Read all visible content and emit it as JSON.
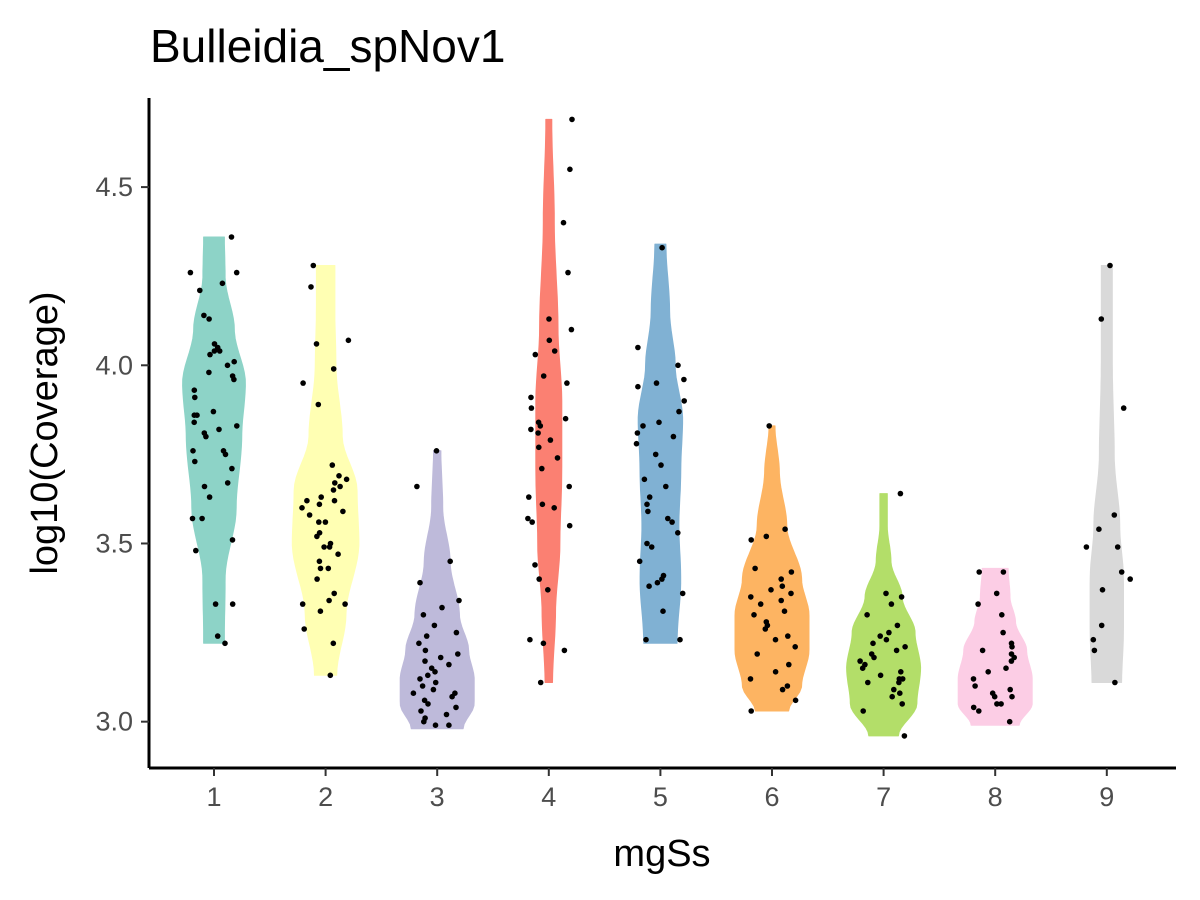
{
  "chart_data": {
    "type": "violin",
    "title": "Bulleidia_spNov1",
    "xlabel": "mgSs",
    "ylabel": "log10(Coverage)",
    "categories": [
      "1",
      "2",
      "3",
      "4",
      "5",
      "6",
      "7",
      "8",
      "9"
    ],
    "yticks": [
      "3.0",
      "3.5",
      "4.0",
      "4.5"
    ],
    "ylim": [
      2.87,
      4.75
    ],
    "grid": false,
    "legend": "none",
    "groups": [
      {
        "category": "1",
        "color": "#8DD3C7",
        "min": 3.22,
        "max": 4.36,
        "density": [
          [
            3.22,
            0.28
          ],
          [
            3.4,
            0.3
          ],
          [
            3.6,
            0.6
          ],
          [
            3.8,
            0.75
          ],
          [
            3.95,
            0.85
          ],
          [
            4.1,
            0.55
          ],
          [
            4.25,
            0.3
          ],
          [
            4.36,
            0.28
          ]
        ],
        "points": [
          3.22,
          3.24,
          3.33,
          3.33,
          3.48,
          3.51,
          3.57,
          3.57,
          3.63,
          3.66,
          3.67,
          3.71,
          3.73,
          3.75,
          3.76,
          3.76,
          3.8,
          3.81,
          3.82,
          3.83,
          3.84,
          3.86,
          3.86,
          3.87,
          3.91,
          3.93,
          3.96,
          3.97,
          3.98,
          4.0,
          4.01,
          4.03,
          4.04,
          4.04,
          4.05,
          4.06,
          4.13,
          4.14,
          4.21,
          4.23,
          4.26,
          4.26,
          4.36
        ]
      },
      {
        "category": "2",
        "color": "#FFFFB3",
        "min": 3.13,
        "max": 4.28,
        "density": [
          [
            3.13,
            0.3
          ],
          [
            3.3,
            0.55
          ],
          [
            3.5,
            0.9
          ],
          [
            3.65,
            0.85
          ],
          [
            3.8,
            0.45
          ],
          [
            4.0,
            0.28
          ],
          [
            4.15,
            0.25
          ],
          [
            4.28,
            0.25
          ]
        ],
        "points": [
          3.13,
          3.22,
          3.26,
          3.31,
          3.33,
          3.33,
          3.34,
          3.36,
          3.4,
          3.43,
          3.43,
          3.45,
          3.47,
          3.49,
          3.49,
          3.5,
          3.52,
          3.53,
          3.56,
          3.56,
          3.58,
          3.59,
          3.6,
          3.61,
          3.62,
          3.62,
          3.63,
          3.65,
          3.66,
          3.67,
          3.68,
          3.69,
          3.72,
          3.89,
          3.95,
          3.99,
          4.06,
          4.07,
          4.22,
          4.28
        ]
      },
      {
        "category": "3",
        "color": "#BEBADA",
        "min": 2.98,
        "max": 3.76,
        "density": [
          [
            2.98,
            0.7
          ],
          [
            3.05,
            1.0
          ],
          [
            3.12,
            1.0
          ],
          [
            3.2,
            0.85
          ],
          [
            3.3,
            0.6
          ],
          [
            3.45,
            0.35
          ],
          [
            3.6,
            0.15
          ],
          [
            3.76,
            0.1
          ]
        ],
        "points": [
          2.99,
          2.99,
          3.0,
          3.01,
          3.02,
          3.03,
          3.04,
          3.05,
          3.06,
          3.07,
          3.08,
          3.08,
          3.09,
          3.1,
          3.11,
          3.12,
          3.13,
          3.14,
          3.15,
          3.16,
          3.17,
          3.18,
          3.19,
          3.2,
          3.22,
          3.24,
          3.25,
          3.27,
          3.3,
          3.32,
          3.34,
          3.39,
          3.45,
          3.66,
          3.76
        ]
      },
      {
        "category": "4",
        "color": "#FB8072",
        "min": 3.11,
        "max": 4.69,
        "density": [
          [
            3.11,
            0.1
          ],
          [
            3.3,
            0.18
          ],
          [
            3.5,
            0.3
          ],
          [
            3.7,
            0.35
          ],
          [
            3.9,
            0.35
          ],
          [
            4.1,
            0.25
          ],
          [
            4.4,
            0.15
          ],
          [
            4.69,
            0.08
          ]
        ],
        "points": [
          3.11,
          3.2,
          3.22,
          3.23,
          3.37,
          3.4,
          3.44,
          3.55,
          3.56,
          3.57,
          3.6,
          3.61,
          3.63,
          3.66,
          3.71,
          3.74,
          3.77,
          3.79,
          3.81,
          3.82,
          3.83,
          3.84,
          3.85,
          3.88,
          3.91,
          3.95,
          3.97,
          4.03,
          4.04,
          4.07,
          4.1,
          4.13,
          4.26,
          4.4,
          4.55,
          4.69
        ]
      },
      {
        "category": "5",
        "color": "#80B1D3",
        "min": 3.22,
        "max": 4.34,
        "density": [
          [
            3.22,
            0.45
          ],
          [
            3.4,
            0.55
          ],
          [
            3.55,
            0.5
          ],
          [
            3.7,
            0.55
          ],
          [
            3.85,
            0.6
          ],
          [
            4.0,
            0.4
          ],
          [
            4.15,
            0.25
          ],
          [
            4.34,
            0.15
          ]
        ],
        "points": [
          3.23,
          3.23,
          3.31,
          3.36,
          3.38,
          3.39,
          3.4,
          3.41,
          3.45,
          3.49,
          3.5,
          3.53,
          3.56,
          3.57,
          3.59,
          3.61,
          3.63,
          3.66,
          3.68,
          3.72,
          3.75,
          3.78,
          3.8,
          3.81,
          3.83,
          3.84,
          3.87,
          3.9,
          3.94,
          3.95,
          3.96,
          4.0,
          4.05,
          4.33
        ]
      },
      {
        "category": "6",
        "color": "#FDB462",
        "min": 3.03,
        "max": 3.83,
        "density": [
          [
            3.03,
            0.45
          ],
          [
            3.1,
            0.8
          ],
          [
            3.2,
            1.0
          ],
          [
            3.3,
            1.0
          ],
          [
            3.4,
            0.8
          ],
          [
            3.55,
            0.4
          ],
          [
            3.7,
            0.2
          ],
          [
            3.83,
            0.08
          ]
        ],
        "points": [
          3.03,
          3.06,
          3.09,
          3.1,
          3.12,
          3.14,
          3.16,
          3.19,
          3.21,
          3.23,
          3.24,
          3.26,
          3.27,
          3.28,
          3.3,
          3.31,
          3.33,
          3.34,
          3.35,
          3.36,
          3.37,
          3.38,
          3.4,
          3.42,
          3.43,
          3.51,
          3.52,
          3.54,
          3.83
        ]
      },
      {
        "category": "7",
        "color": "#B3DE69",
        "min": 2.96,
        "max": 3.64,
        "density": [
          [
            2.96,
            0.4
          ],
          [
            3.05,
            0.9
          ],
          [
            3.15,
            1.0
          ],
          [
            3.25,
            0.85
          ],
          [
            3.35,
            0.5
          ],
          [
            3.45,
            0.2
          ],
          [
            3.55,
            0.1
          ],
          [
            3.64,
            0.1
          ]
        ],
        "points": [
          2.96,
          3.03,
          3.05,
          3.07,
          3.08,
          3.09,
          3.11,
          3.11,
          3.12,
          3.12,
          3.13,
          3.14,
          3.15,
          3.16,
          3.17,
          3.18,
          3.19,
          3.2,
          3.21,
          3.22,
          3.23,
          3.24,
          3.25,
          3.27,
          3.3,
          3.33,
          3.35,
          3.36,
          3.64
        ]
      },
      {
        "category": "8",
        "color": "#FCCDE5",
        "min": 2.99,
        "max": 3.43,
        "density": [
          [
            2.99,
            0.65
          ],
          [
            3.05,
            1.0
          ],
          [
            3.12,
            1.0
          ],
          [
            3.2,
            0.85
          ],
          [
            3.28,
            0.55
          ],
          [
            3.35,
            0.4
          ],
          [
            3.43,
            0.35
          ]
        ],
        "points": [
          3.0,
          3.03,
          3.04,
          3.05,
          3.05,
          3.07,
          3.07,
          3.08,
          3.09,
          3.1,
          3.12,
          3.14,
          3.15,
          3.17,
          3.18,
          3.19,
          3.2,
          3.21,
          3.22,
          3.25,
          3.3,
          3.33,
          3.36,
          3.42,
          3.42
        ]
      },
      {
        "category": "9",
        "color": "#D9D9D9",
        "min": 3.11,
        "max": 4.28,
        "density": [
          [
            3.11,
            0.4
          ],
          [
            3.25,
            0.45
          ],
          [
            3.4,
            0.45
          ],
          [
            3.55,
            0.35
          ],
          [
            3.75,
            0.2
          ],
          [
            4.0,
            0.15
          ],
          [
            4.28,
            0.15
          ]
        ],
        "points": [
          3.11,
          3.2,
          3.23,
          3.27,
          3.37,
          3.4,
          3.42,
          3.49,
          3.49,
          3.54,
          3.58,
          3.88,
          4.13,
          4.28
        ]
      }
    ]
  }
}
